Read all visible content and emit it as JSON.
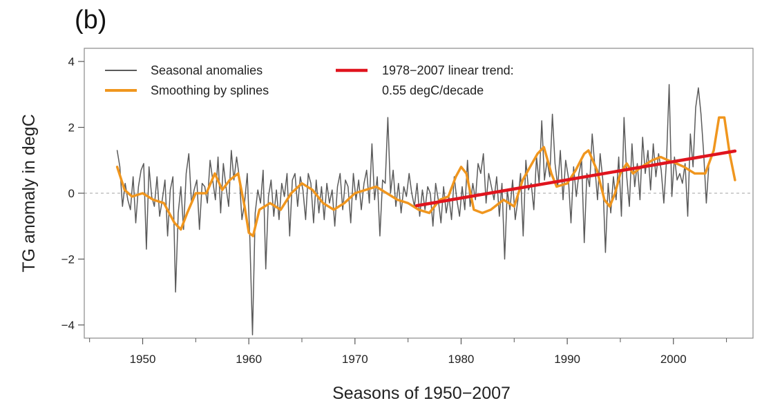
{
  "panel_label": "(b)",
  "chart_data": {
    "type": "line",
    "title": "",
    "xlabel": "Seasons of 1950−2007",
    "ylabel": "TG anomaly in degC",
    "xlim": [
      1944.5,
      2007.5
    ],
    "ylim": [
      -4.4,
      4.4
    ],
    "xticks": [
      1950,
      1960,
      1970,
      1980,
      1990,
      2000
    ],
    "yticks": [
      -4,
      -2,
      0,
      2,
      4
    ],
    "x_minor_step": 5,
    "zero_line": true,
    "grid": false,
    "legend_position": "top-left",
    "colors": {
      "raw": "#5a5a5a",
      "smooth": "#f0961e",
      "trend": "#e0141e",
      "zero": "#b4b4b4"
    },
    "series": [
      {
        "name": "Seasonal anomalies",
        "role": "raw",
        "x_start": 1947.6,
        "x_step": 0.25,
        "values": [
          1.3,
          0.8,
          -0.4,
          0.3,
          -0.2,
          -0.5,
          0.5,
          -0.9,
          0.2,
          0.7,
          0.9,
          -1.7,
          0.8,
          -0.1,
          -0.4,
          0.5,
          -0.7,
          -0.2,
          0.4,
          -1.3,
          0.1,
          0.5,
          -3.0,
          -0.6,
          0.2,
          -1.1,
          0.6,
          1.2,
          -0.3,
          0.1,
          0.4,
          -1.1,
          0.3,
          0.2,
          -0.3,
          1.0,
          0.4,
          -0.2,
          1.1,
          -0.6,
          0.9,
          0.2,
          -0.4,
          1.3,
          0.4,
          1.1,
          0.5,
          -0.8,
          -0.3,
          0.6,
          -1.4,
          -4.3,
          -0.6,
          0.1,
          -0.3,
          0.7,
          -2.3,
          -0.1,
          0.4,
          -0.7,
          0.1,
          -0.8,
          0.3,
          -0.1,
          0.6,
          -1.3,
          0.4,
          0.6,
          -0.4,
          0.5,
          0.1,
          -0.8,
          0.6,
          0.3,
          -0.9,
          0.4,
          -0.6,
          0.2,
          -0.8,
          0.3,
          -0.3,
          0.1,
          -1.0,
          0.2,
          0.6,
          -0.5,
          0.4,
          0.2,
          -0.9,
          0.6,
          -0.2,
          0.4,
          -0.5,
          0.3,
          0.7,
          -0.3,
          1.5,
          -0.2,
          0.5,
          -1.3,
          0.4,
          0.3,
          2.3,
          0.0,
          0.7,
          -0.4,
          0.3,
          -0.6,
          0.2,
          -0.1,
          0.6,
          0.0,
          -0.4,
          0.3,
          -0.7,
          0.1,
          -0.5,
          0.2,
          0.0,
          -1.0,
          0.3,
          -0.2,
          -0.9,
          0.2,
          -0.6,
          -0.1,
          -0.8,
          0.5,
          -0.2,
          -0.7,
          0.2,
          -0.5,
          1.0,
          -0.4,
          0.3,
          -0.2,
          0.9,
          0.6,
          1.2,
          -0.3,
          0.6,
          0.2,
          -0.2,
          0.5,
          -0.7,
          0.3,
          -2.0,
          0.1,
          -0.5,
          0.4,
          -0.8,
          -0.2,
          0.6,
          -1.3,
          1.0,
          0.1,
          0.3,
          -0.5,
          1.1,
          0.3,
          2.2,
          0.4,
          1.0,
          0.5,
          2.4,
          0.9,
          0.2,
          1.3,
          -0.2,
          1.0,
          0.5,
          -0.9,
          0.8,
          -0.1,
          0.6,
          1.0,
          -1.5,
          0.6,
          0.2,
          1.8,
          0.8,
          -0.2,
          1.2,
          0.4,
          -1.8,
          0.3,
          -0.6,
          0.5,
          -0.2,
          1.1,
          -0.7,
          2.3,
          0.5,
          -0.4,
          1.5,
          0.2,
          0.9,
          -0.2,
          1.7,
          0.6,
          1.3,
          0.1,
          1.5,
          0.5,
          1.2,
          0.7,
          -0.3,
          1.0,
          3.3,
          -0.1,
          1.1,
          0.4,
          0.6,
          0.3,
          0.9,
          -0.7,
          1.8,
          0.8,
          2.6,
          3.2,
          2.4,
          1.2,
          -0.3,
          0.9
        ]
      },
      {
        "name": "Smoothing by splines",
        "role": "smooth",
        "x": [
          1947.6,
          1948.3,
          1949.0,
          1950.0,
          1951.0,
          1952.0,
          1953.0,
          1953.6,
          1954.2,
          1955.0,
          1956.0,
          1956.8,
          1957.5,
          1958.2,
          1959.0,
          1959.6,
          1960.0,
          1960.4,
          1961.0,
          1962.0,
          1963.0,
          1964.0,
          1965.0,
          1966.0,
          1967.0,
          1968.0,
          1969.0,
          1970.0,
          1971.0,
          1972.0,
          1973.0,
          1974.0,
          1975.0,
          1976.0,
          1977.0,
          1978.0,
          1978.8,
          1979.5,
          1980.0,
          1980.5,
          1981.2,
          1982.0,
          1982.8,
          1984.0,
          1985.0,
          1985.8,
          1986.5,
          1987.2,
          1987.8,
          1988.5,
          1989.0,
          1990.0,
          1990.8,
          1991.6,
          1992.0,
          1992.8,
          1993.5,
          1994.0,
          1994.5,
          1995.0,
          1995.6,
          1996.2,
          1997.0,
          1998.0,
          1998.8,
          1999.5,
          2000.3,
          2001.0,
          2002.0,
          2003.0,
          2003.8,
          2004.3,
          2004.8,
          2005.3,
          2005.8
        ],
        "values": [
          0.8,
          0.1,
          -0.1,
          0.0,
          -0.2,
          -0.3,
          -0.9,
          -1.1,
          -0.6,
          0.0,
          0.0,
          0.6,
          0.1,
          0.4,
          0.6,
          -0.4,
          -1.2,
          -1.3,
          -0.5,
          -0.3,
          -0.5,
          0.0,
          0.3,
          0.1,
          -0.3,
          -0.5,
          -0.3,
          0.0,
          0.1,
          0.2,
          0.0,
          -0.2,
          -0.3,
          -0.5,
          -0.6,
          -0.2,
          -0.1,
          0.5,
          0.8,
          0.6,
          -0.5,
          -0.6,
          -0.5,
          -0.2,
          -0.4,
          0.4,
          0.8,
          1.2,
          1.4,
          0.6,
          0.2,
          0.3,
          0.7,
          1.2,
          1.3,
          0.7,
          -0.2,
          -0.4,
          0.0,
          0.6,
          0.9,
          0.6,
          0.8,
          1.0,
          1.1,
          1.0,
          0.9,
          0.8,
          0.6,
          0.6,
          1.3,
          2.3,
          2.3,
          1.2,
          0.4
        ]
      },
      {
        "name": "1978−2007 linear trend:",
        "name_line2": "0.55 degC/decade",
        "role": "trend",
        "x": [
          1975.8,
          2005.8
        ],
        "values": [
          -0.38,
          1.28
        ]
      }
    ]
  }
}
